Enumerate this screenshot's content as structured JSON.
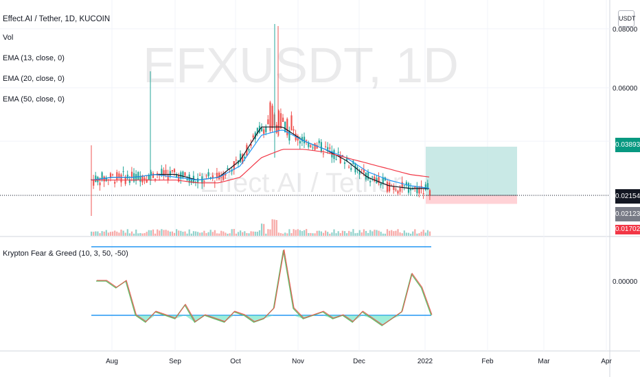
{
  "legend": {
    "title": "Effect.AI / Tether, 1D, KUCOIN",
    "vol": "Vol",
    "ema13": "EMA (13, close, 0)",
    "ema20": "EMA (20, close, 0)",
    "ema50": "EMA (50, close, 0)",
    "osc": "Krypton Fear & Greed (10, 3, 50, -50)"
  },
  "watermark": {
    "symbol": "EFXUSDT, 1D",
    "name": "Effect.AI / Tether"
  },
  "currency": "USDT",
  "price_labels": {
    "top": "0.08000",
    "mid": "0.06000",
    "osc_zero": "0.00000"
  },
  "price_boxes": [
    {
      "value": "0.03893",
      "color": "#089981"
    },
    {
      "value": "0.02154",
      "color": "#131722"
    },
    {
      "value": "0.02123",
      "color": "#787b86"
    },
    {
      "value": "0.01702",
      "color": "#f23645"
    }
  ],
  "colors": {
    "up": "#26a69a",
    "down": "#ef5350",
    "ema13": "#131722",
    "ema20": "#2196f3",
    "ema50": "#f23645",
    "target": "#b2dfdb",
    "stop": "#ffcdd2",
    "level": "#2196f3"
  },
  "chart_data": [
    {
      "type": "candlestick",
      "title": "Effect.AI / Tether, 1D, KUCOIN",
      "x_ticks": [
        "Aug",
        "Sep",
        "Oct",
        "Nov",
        "Dec",
        "2022",
        "Feb",
        "Mar",
        "Apr"
      ],
      "y_ticks": [
        "0.06000",
        "0.08000"
      ],
      "series": [
        {
          "name": "EMA (13, close, 0)",
          "values": [
            0.027,
            0.028,
            0.028,
            0.029,
            0.029,
            0.027,
            0.028,
            0.034,
            0.046,
            0.046,
            0.041,
            0.038,
            0.034,
            0.028,
            0.025,
            0.024,
            0.024
          ]
        },
        {
          "name": "EMA (20, close, 0)",
          "values": [
            0.027,
            0.028,
            0.028,
            0.029,
            0.028,
            0.027,
            0.028,
            0.032,
            0.043,
            0.045,
            0.041,
            0.038,
            0.035,
            0.03,
            0.027,
            0.025,
            0.024
          ]
        },
        {
          "name": "EMA (50, close, 0)",
          "values": [
            0.027,
            0.027,
            0.027,
            0.027,
            0.027,
            0.026,
            0.026,
            0.028,
            0.035,
            0.038,
            0.038,
            0.037,
            0.035,
            0.033,
            0.031,
            0.029,
            0.028
          ]
        }
      ],
      "last_price": 0.02154,
      "position": {
        "target": 0.03893,
        "entry": 0.02154,
        "stop": 0.01702
      }
    },
    {
      "type": "line",
      "title": "Krypton Fear & Greed (10, 3, 50, -50)",
      "y_ticks": [
        "0.00000"
      ],
      "levels": [
        50,
        -50
      ],
      "series": [
        {
          "name": "Krypton Fear & Greed",
          "values": [
            0,
            0,
            -10,
            0,
            -50,
            -60,
            -45,
            -50,
            -55,
            -35,
            -60,
            -50,
            -55,
            -60,
            -45,
            -50,
            -60,
            -55,
            -40,
            45,
            -40,
            -55,
            -50,
            -45,
            -55,
            -50,
            -60,
            -45,
            -55,
            -65,
            -55,
            -45,
            10,
            -10,
            -50
          ]
        }
      ]
    }
  ]
}
